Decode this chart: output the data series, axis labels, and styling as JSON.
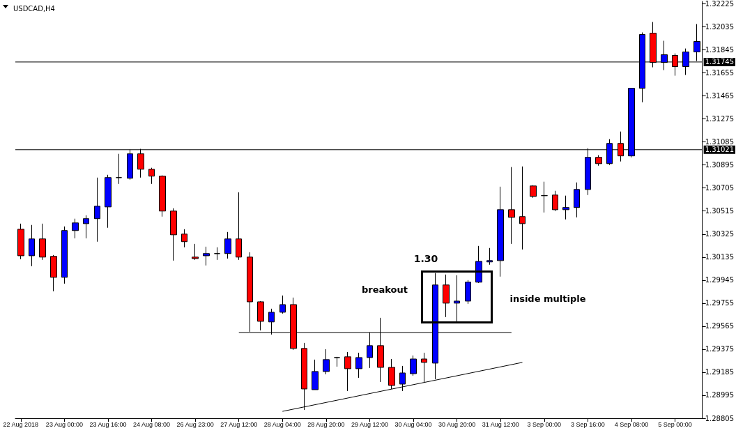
{
  "chart_data": {
    "type": "candlestick",
    "title": "USDCAD,H4",
    "categories": [
      "22 Aug 2018",
      null,
      null,
      null,
      "23 Aug 00:00",
      null,
      null,
      null,
      "23 Aug 16:00",
      null,
      null,
      null,
      "24 Aug 08:00",
      null,
      null,
      null,
      "26 Aug 23:00",
      null,
      null,
      null,
      "27 Aug 12:00",
      null,
      null,
      null,
      "28 Aug 04:00",
      null,
      null,
      null,
      "28 Aug 20:00",
      null,
      null,
      null,
      "29 Aug 12:00",
      null,
      null,
      null,
      "30 Aug 04:00",
      null,
      null,
      null,
      "30 Aug 20:00",
      null,
      null,
      null,
      "31 Aug 12:00",
      null,
      null,
      null,
      "3 Sep 00:00",
      null,
      null,
      null,
      "3 Sep 16:00",
      null,
      null,
      null,
      "4 Sep 08:00",
      null,
      null,
      null,
      "5 Sep 00:00",
      null,
      null
    ],
    "ohlc": [
      [
        1.30365,
        1.30411,
        1.30118,
        1.30146
      ],
      [
        1.30146,
        1.304,
        1.3006,
        1.30285
      ],
      [
        1.30285,
        1.30411,
        1.30112,
        1.30135
      ],
      [
        1.30141,
        1.30152,
        1.29853,
        1.29968
      ],
      [
        1.29968,
        1.30388,
        1.29916,
        1.30354
      ],
      [
        1.30354,
        1.30452,
        1.3029,
        1.30417
      ],
      [
        1.30411,
        1.3048,
        1.3029,
        1.30452
      ],
      [
        1.30452,
        1.30791,
        1.30262,
        1.30555
      ],
      [
        1.30549,
        1.30814,
        1.30377,
        1.30791
      ],
      [
        1.30791,
        1.30987,
        1.30739,
        1.30791
      ],
      [
        1.30786,
        1.31022,
        1.30774,
        1.30987
      ],
      [
        1.30987,
        1.31028,
        1.30791,
        1.3086
      ],
      [
        1.3086,
        1.30872,
        1.30739,
        1.30803
      ],
      [
        1.30803,
        1.3081,
        1.30469,
        1.30515
      ],
      [
        1.30515,
        1.30538,
        1.30106,
        1.30319
      ],
      [
        1.30325,
        1.30365,
        1.30216,
        1.30262
      ],
      [
        1.30135,
        1.30244,
        1.30112,
        1.30123
      ],
      [
        1.30146,
        1.30221,
        1.30066,
        1.30164
      ],
      [
        1.30164,
        1.30216,
        1.30112,
        1.30164
      ],
      [
        1.30164,
        1.30342,
        1.30123,
        1.30285
      ],
      [
        1.30285,
        1.3067,
        1.30112,
        1.30135
      ],
      [
        1.30135,
        1.30175,
        1.29519,
        1.29766
      ],
      [
        1.29766,
        1.29772,
        1.2953,
        1.29605
      ],
      [
        1.296,
        1.29709,
        1.29496,
        1.2968
      ],
      [
        1.2968,
        1.29818,
        1.29669,
        1.29743
      ],
      [
        1.29743,
        1.29801,
        1.29369,
        1.29381
      ],
      [
        1.29381,
        1.29427,
        1.28874,
        1.29047
      ],
      [
        1.29041,
        1.29289,
        1.29041,
        1.29191
      ],
      [
        1.29191,
        1.29375,
        1.29168,
        1.29289
      ],
      [
        1.29306,
        1.29312,
        1.29231,
        1.29306
      ],
      [
        1.29312,
        1.29352,
        1.2903,
        1.29214
      ],
      [
        1.29214,
        1.29346,
        1.29139,
        1.29306
      ],
      [
        1.29306,
        1.29513,
        1.2922,
        1.29404
      ],
      [
        1.29404,
        1.29634,
        1.29104,
        1.29225
      ],
      [
        1.29225,
        1.29294,
        1.29047,
        1.29076
      ],
      [
        1.29087,
        1.29237,
        1.2903,
        1.29179
      ],
      [
        1.29173,
        1.29323,
        1.29156,
        1.29294
      ],
      [
        1.29294,
        1.29346,
        1.29104,
        1.29266
      ],
      [
        1.2926,
        1.30003,
        1.29127,
        1.29905
      ],
      [
        1.29905,
        1.29991,
        1.2964,
        1.29755
      ],
      [
        1.29755,
        1.29985,
        1.29605,
        1.29772
      ],
      [
        1.29772,
        1.29945,
        1.29749,
        1.29928
      ],
      [
        1.29928,
        1.30227,
        1.29922,
        1.301
      ],
      [
        1.30095,
        1.3021,
        1.30072,
        1.30106
      ],
      [
        1.30106,
        1.30716,
        1.29974,
        1.30526
      ],
      [
        1.30526,
        1.30878,
        1.30244,
        1.30463
      ],
      [
        1.30469,
        1.30883,
        1.30198,
        1.30411
      ],
      [
        1.30722,
        1.30728,
        1.30624,
        1.30636
      ],
      [
        1.30642,
        1.30757,
        1.30503,
        1.30642
      ],
      [
        1.30647,
        1.30682,
        1.30515,
        1.30526
      ],
      [
        1.30526,
        1.30642,
        1.30446,
        1.30544
      ],
      [
        1.30544,
        1.30751,
        1.30463,
        1.30693
      ],
      [
        1.30693,
        1.31033,
        1.30647,
        1.30958
      ],
      [
        1.30958,
        1.30976,
        1.30889,
        1.30906
      ],
      [
        1.30906,
        1.31108,
        1.30895,
        1.31073
      ],
      [
        1.31073,
        1.31171,
        1.30924,
        1.3097
      ],
      [
        1.3097,
        1.31528,
        1.30958,
        1.31528
      ],
      [
        1.31528,
        1.31989,
        1.31413,
        1.31972
      ],
      [
        1.31983,
        1.32075,
        1.31701,
        1.31741
      ],
      [
        1.31741,
        1.3192,
        1.31678,
        1.31805
      ],
      [
        1.31799,
        1.31816,
        1.31632,
        1.31707
      ],
      [
        1.31707,
        1.31856,
        1.31638,
        1.31828
      ],
      [
        1.31828,
        1.32058,
        1.31753,
        1.31914
      ]
    ],
    "colors": [
      "#ff0000",
      "#0000ff",
      "#ff0000",
      "#ff0000",
      "#0000ff",
      "#0000ff",
      "#0000ff",
      "#0000ff",
      "#0000ff",
      "#000000",
      "#0000ff",
      "#ff0000",
      "#ff0000",
      "#ff0000",
      "#ff0000",
      "#ff0000",
      "#ff0000",
      "#0000ff",
      "#000000",
      "#0000ff",
      "#ff0000",
      "#ff0000",
      "#ff0000",
      "#0000ff",
      "#0000ff",
      "#ff0000",
      "#ff0000",
      "#0000ff",
      "#0000ff",
      "#000000",
      "#ff0000",
      "#0000ff",
      "#0000ff",
      "#ff0000",
      "#ff0000",
      "#0000ff",
      "#0000ff",
      "#ff0000",
      "#0000ff",
      "#ff0000",
      "#0000ff",
      "#0000ff",
      "#0000ff",
      "#0000ff",
      "#0000ff",
      "#ff0000",
      "#ff0000",
      "#ff0000",
      "#000000",
      "#ff0000",
      "#0000ff",
      "#0000ff",
      "#0000ff",
      "#ff0000",
      "#0000ff",
      "#ff0000",
      "#0000ff",
      "#0000ff",
      "#ff0000",
      "#0000ff",
      "#ff0000",
      "#0000ff",
      "#0000ff"
    ],
    "series": [
      {
        "type": "line",
        "color": "#000000",
        "values": [
          null,
          null,
          null,
          null,
          null,
          null,
          null,
          null,
          null,
          null,
          null,
          null,
          null,
          null,
          null,
          null,
          null,
          null,
          null,
          null,
          1.29513,
          null,
          null,
          null,
          null,
          null,
          null,
          null,
          null,
          null,
          null,
          null,
          null,
          null,
          null,
          null,
          null,
          null,
          null,
          null,
          null,
          null,
          null,
          null,
          null,
          1.29513,
          null,
          null,
          null,
          null,
          null,
          null,
          null,
          null,
          null,
          null,
          null,
          null,
          null,
          null,
          null,
          null,
          null
        ]
      },
      {
        "type": "line",
        "color": "#000000",
        "values": [
          null,
          null,
          null,
          null,
          null,
          null,
          null,
          null,
          null,
          null,
          null,
          null,
          null,
          null,
          null,
          null,
          null,
          null,
          null,
          null,
          null,
          null,
          null,
          null,
          1.28862,
          null,
          null,
          null,
          null,
          null,
          null,
          null,
          null,
          null,
          null,
          null,
          null,
          null,
          null,
          null,
          null,
          null,
          null,
          null,
          null,
          null,
          1.29266,
          null,
          null,
          null,
          null,
          null,
          null,
          null,
          null,
          null,
          null,
          null,
          null,
          null,
          null,
          null,
          null
        ]
      }
    ],
    "ylim": [
      1.28805,
      1.32245
    ],
    "yticks": [
      1.28805,
      1.28995,
      1.29185,
      1.29375,
      1.29565,
      1.29755,
      1.29945,
      1.30135,
      1.30325,
      1.30515,
      1.30705,
      1.30895,
      1.31085,
      1.31275,
      1.31465,
      1.31655,
      1.31845,
      1.32035,
      1.32225
    ],
    "ref_lines": [
      {
        "axis": "y",
        "value": 1.31745,
        "label": "1.31745",
        "color": "#000000"
      },
      {
        "axis": "y",
        "value": 1.31021,
        "label": "1.31021",
        "color": "#000000"
      }
    ],
    "annotations": [
      "1.30",
      "breakout",
      "inside multiple"
    ]
  }
}
